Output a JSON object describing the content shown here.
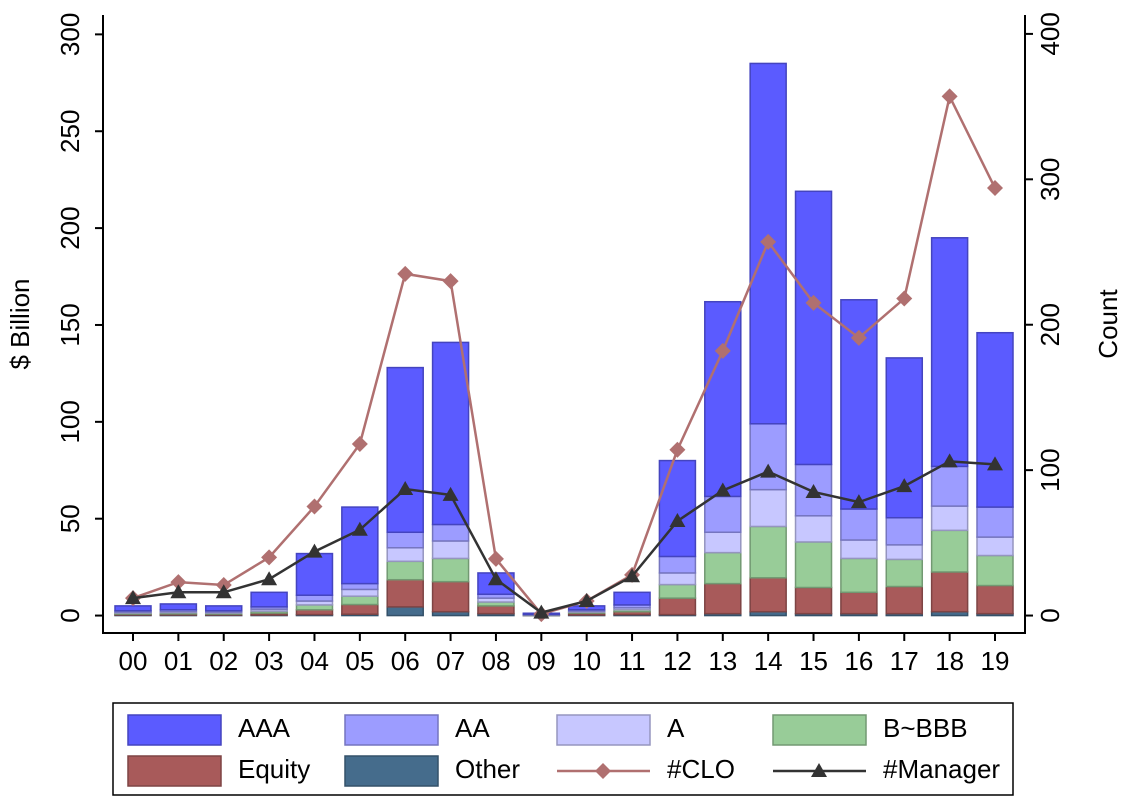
{
  "chart_data": {
    "type": "bar",
    "stacked": true,
    "y_label": "$ Billion",
    "y2_label": "Count",
    "categories": [
      "00",
      "01",
      "02",
      "03",
      "04",
      "05",
      "06",
      "07",
      "08",
      "09",
      "10",
      "11",
      "12",
      "13",
      "14",
      "15",
      "16",
      "17",
      "18",
      "19"
    ],
    "ylim": [
      -9,
      310
    ],
    "yticks": [
      0,
      50,
      100,
      150,
      200,
      250,
      300
    ],
    "y2lim": [
      -12,
      413
    ],
    "y2ticks": [
      0,
      100,
      200,
      300,
      400
    ],
    "grid": false,
    "legend": "bottom",
    "series": [
      {
        "name": "Other",
        "type": "bar",
        "color": "#456c8c",
        "values": [
          0.3,
          0.3,
          0.3,
          0.3,
          0.5,
          0.7,
          4.5,
          2,
          1,
          0.1,
          0.3,
          0.5,
          0.5,
          1,
          2,
          1,
          1,
          1,
          2,
          1
        ]
      },
      {
        "name": "Equity",
        "type": "bar",
        "color": "#a85a5a",
        "values": [
          0.5,
          0.6,
          0.5,
          1,
          2.5,
          5,
          14,
          15.5,
          4,
          0.1,
          1,
          1.5,
          8.5,
          15.5,
          17.5,
          13.5,
          11,
          14,
          20.5,
          14.5
        ]
      },
      {
        "name": "B~BBB",
        "type": "bar",
        "color": "#98cc98",
        "values": [
          0.5,
          0.6,
          0.5,
          1,
          2.5,
          4.3,
          9.5,
          12,
          2,
          0.1,
          0.5,
          1,
          7,
          16,
          26.5,
          23.5,
          17.5,
          14,
          21.5,
          15.5
        ]
      },
      {
        "name": "A",
        "type": "bar",
        "color": "#c7c7ff",
        "values": [
          0.5,
          0.6,
          0.5,
          1,
          2,
          3.5,
          7,
          9,
          2,
          0.1,
          0.5,
          1,
          6,
          10.5,
          19,
          13.5,
          9.5,
          7.5,
          12.5,
          9.5
        ]
      },
      {
        "name": "AA",
        "type": "bar",
        "color": "#9c9cff",
        "values": [
          0.7,
          0.9,
          0.7,
          1.2,
          3,
          3,
          8,
          8.5,
          2,
          0.2,
          0.7,
          1.5,
          8.5,
          18.5,
          34,
          26.5,
          16,
          14,
          20.5,
          15.5
        ]
      },
      {
        "name": "AAA",
        "type": "bar",
        "color": "#5b5bff",
        "values": [
          2.5,
          3,
          2.5,
          7.5,
          21.5,
          39.5,
          85,
          94,
          11,
          0.6,
          2,
          6.5,
          49.5,
          100.5,
          186,
          141,
          108,
          82.5,
          118,
          90
        ]
      },
      {
        "name": "#CLO",
        "type": "line",
        "axis": "y2",
        "marker": "diamond",
        "color": "#b07070",
        "values": [
          12,
          23,
          21,
          40,
          75,
          118,
          235,
          230,
          39,
          1,
          10,
          28,
          114,
          182,
          257,
          215,
          191,
          218,
          357,
          294
        ]
      },
      {
        "name": "#Manager",
        "type": "line",
        "axis": "y2",
        "marker": "triangle",
        "color": "#333333",
        "values": [
          12,
          16,
          16,
          25,
          44,
          59,
          87,
          83,
          25,
          2,
          10,
          27,
          65,
          86,
          99,
          85,
          78,
          89,
          106,
          104
        ]
      }
    ]
  }
}
